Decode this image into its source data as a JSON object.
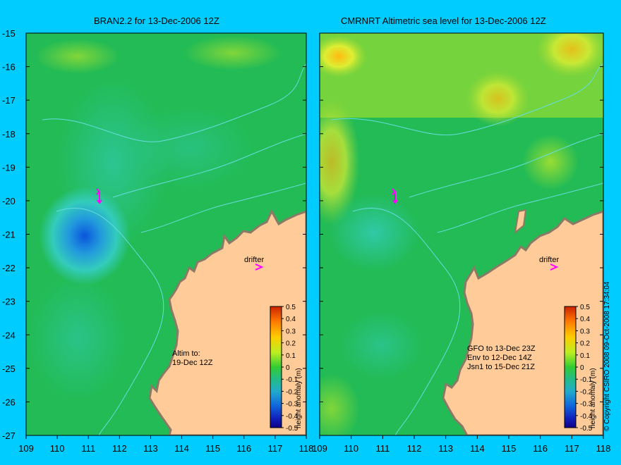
{
  "left_panel": {
    "title": "BRAN2.2 for 13-Dec-2006 12Z",
    "note": "Altim to:\n19-Dec 12Z",
    "drifter_label": "drifter",
    "colorbar_label": "height anomaly (m)"
  },
  "right_panel": {
    "title": "CMRNRT Altimetric sea level  for 13-Dec-2006 12Z",
    "note": "GFO to 13-Dec 23Z\nEnv to 12-Dec 14Z\nJsn1 to 15-Dec 21Z",
    "drifter_label": "drifter",
    "colorbar_label": "height anomaly (m)"
  },
  "y_ticks": [
    "-15",
    "-16",
    "-17",
    "-18",
    "-19",
    "-20",
    "-21",
    "-22",
    "-23",
    "-24",
    "-25",
    "-26",
    "-27"
  ],
  "x_ticks": [
    "109",
    "110",
    "111",
    "112",
    "113",
    "114",
    "115",
    "116",
    "117",
    "118"
  ],
  "colorbar_ticks": [
    "0.5",
    "0.4",
    "0.3",
    "0.2",
    "0.1",
    "0",
    "-0.1",
    "-0.2",
    "-0.3",
    "-0.4",
    "-0.5"
  ],
  "copyright": "© Copyright CSIRO 2008   09-Oct-2008 17:34:04",
  "colors": {
    "background": "#00ccff",
    "land": "#ffcc99",
    "ocean_base": "#22bb55",
    "low_anomaly": "#1155dd",
    "high_anomaly": "#ffcc00"
  }
}
